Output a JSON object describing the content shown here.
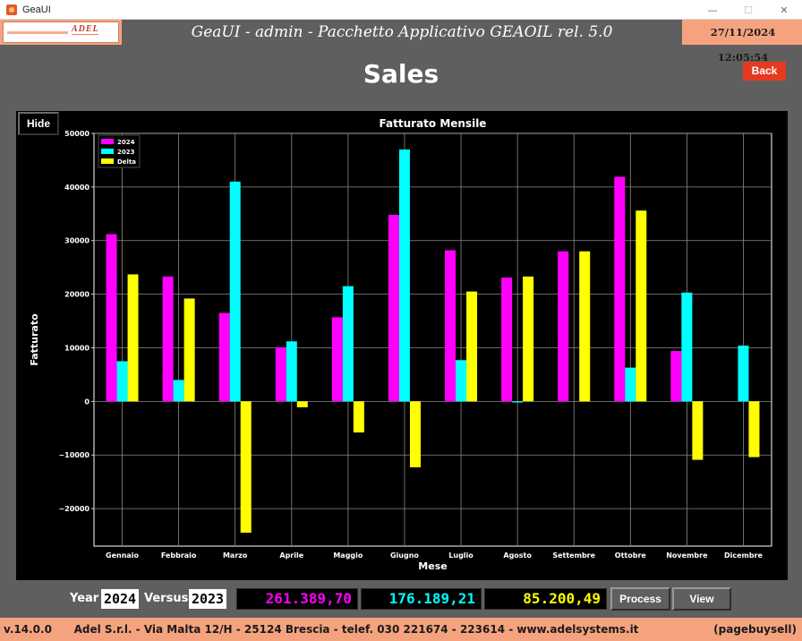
{
  "window": {
    "title": "GeaUI",
    "minimize": "—",
    "maximize": "☐",
    "close": "✕"
  },
  "header": {
    "logo_text": "ADEL",
    "app_title": "GeaUI - admin - Pacchetto Applicativo GEAOIL rel. 5.0",
    "datetime": "27/11/2024 12:05:54"
  },
  "page": {
    "title": "Sales",
    "back_label": "Back",
    "hide_label": "Hide"
  },
  "colors": {
    "series_2024": "#ff00ff",
    "series_2023": "#00ffff",
    "series_delta": "#ffff00",
    "accent": "#e53a1f",
    "header": "#f5a37f"
  },
  "chart_data": {
    "type": "bar",
    "title": "Fatturato Mensile",
    "xlabel": "Mese",
    "ylabel": "Fatturato",
    "ylim": [
      -27000,
      50000
    ],
    "yticks": [
      -20000,
      -10000,
      0,
      10000,
      20000,
      30000,
      40000,
      50000
    ],
    "grid": true,
    "legend": "top-left",
    "categories": [
      "Gennaio",
      "Febbraio",
      "Marzo",
      "Aprile",
      "Maggio",
      "Giugno",
      "Luglio",
      "Agosto",
      "Settembre",
      "Ottobre",
      "Novembre",
      "Dicembre"
    ],
    "series": [
      {
        "name": "2024",
        "color": "#ff00ff",
        "values": [
          31200,
          23300,
          16500,
          10100,
          15700,
          34800,
          28200,
          23100,
          28000,
          41900,
          9400,
          0
        ]
      },
      {
        "name": "2023",
        "color": "#00ffff",
        "values": [
          7500,
          4000,
          41000,
          11200,
          21500,
          47000,
          7700,
          -200,
          0,
          6300,
          20300,
          10400
        ]
      },
      {
        "name": "Delta",
        "color": "#ffff00",
        "values": [
          23700,
          19200,
          -24500,
          -1100,
          -5800,
          -12300,
          20500,
          23300,
          28000,
          35600,
          -10900,
          -10400
        ]
      }
    ]
  },
  "controls": {
    "year_label": "Year",
    "year_value": "2024",
    "versus_label": "Versus",
    "versus_value": "2023",
    "total_2024": "261.389,70",
    "total_2023": "176.189,21",
    "total_delta": "85.200,49",
    "process_label": "Process",
    "view_label": "View"
  },
  "status": {
    "version": "v.14.0.0",
    "company": "Adel S.r.l. - Via Malta 12/H - 25124 Brescia - telef. 030 221674 - 223614 - www.adelsystems.it",
    "page_id": "(pagebuysell)"
  }
}
